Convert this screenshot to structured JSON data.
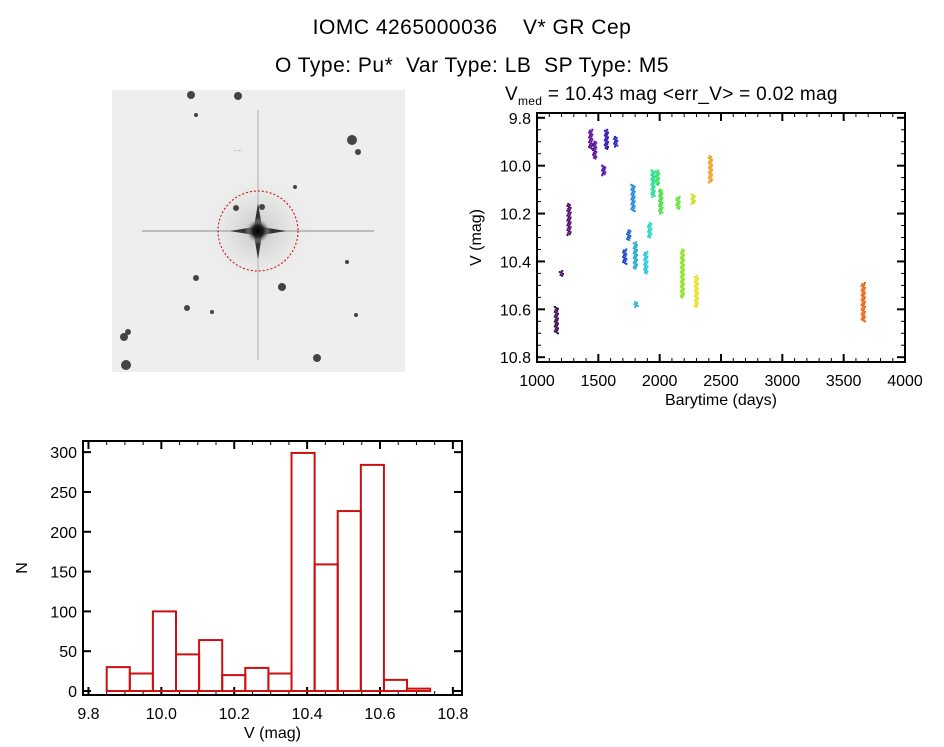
{
  "header": {
    "title_line1": "IOMC 4265000036    V* GR Cep",
    "title_line2": "O Type: Pu*  Var Type: LB  SP Type: M5"
  },
  "chart_data": [
    {
      "type": "scatter",
      "title_main": "V",
      "title_sub": "med",
      "title_rest": " = 10.43 mag <err_V> = 0.02 mag",
      "xlabel": "Barytime (days)",
      "ylabel": "V (mag)",
      "xlim": [
        1000,
        4000
      ],
      "ylim": [
        10.82,
        9.78
      ],
      "y_inverted": true,
      "xticks": [
        1000,
        1500,
        2000,
        2500,
        3000,
        3500,
        4000
      ],
      "xtick_labels": [
        "1000",
        "1500",
        "2000",
        "2500",
        "3000",
        "3500",
        "4000"
      ],
      "yticks": [
        9.8,
        10.0,
        10.2,
        10.4,
        10.6,
        10.8
      ],
      "ytick_labels": [
        "9.8",
        "10.0",
        "10.2",
        "10.4",
        "10.6",
        "10.8"
      ],
      "grid": false,
      "clusters": [
        {
          "t": 1158,
          "vmin": 10.59,
          "vmax": 10.7,
          "color": "#3a0a4a"
        },
        {
          "t": 1199,
          "vmin": 10.44,
          "vmax": 10.46,
          "color": "#40105a"
        },
        {
          "t": 1261,
          "vmin": 10.16,
          "vmax": 10.29,
          "color": "#4a0a6a"
        },
        {
          "t": 1438,
          "vmin": 9.85,
          "vmax": 9.93,
          "color": "#5a1090"
        },
        {
          "t": 1470,
          "vmin": 9.9,
          "vmax": 9.97,
          "color": "#5a1098"
        },
        {
          "t": 1544,
          "vmin": 10.0,
          "vmax": 10.04,
          "color": "#5010a0"
        },
        {
          "t": 1566,
          "vmin": 9.85,
          "vmax": 9.93,
          "color": "#3010b0"
        },
        {
          "t": 1642,
          "vmin": 9.88,
          "vmax": 9.92,
          "color": "#2020c0"
        },
        {
          "t": 1715,
          "vmin": 10.35,
          "vmax": 10.41,
          "color": "#1a40d0"
        },
        {
          "t": 1748,
          "vmin": 10.27,
          "vmax": 10.31,
          "color": "#1a60d0"
        },
        {
          "t": 1783,
          "vmin": 10.08,
          "vmax": 10.19,
          "color": "#1a8ad8"
        },
        {
          "t": 1802,
          "vmin": 10.32,
          "vmax": 10.43,
          "color": "#20a8d0"
        },
        {
          "t": 1808,
          "vmin": 10.57,
          "vmax": 10.59,
          "color": "#20b8d8"
        },
        {
          "t": 1887,
          "vmin": 10.36,
          "vmax": 10.45,
          "color": "#20c8d8"
        },
        {
          "t": 1919,
          "vmin": 10.24,
          "vmax": 10.3,
          "color": "#20d8c0"
        },
        {
          "t": 1946,
          "vmin": 10.02,
          "vmax": 10.13,
          "color": "#20e090"
        },
        {
          "t": 1982,
          "vmin": 10.02,
          "vmax": 10.08,
          "color": "#30e060"
        },
        {
          "t": 2009,
          "vmin": 10.1,
          "vmax": 10.2,
          "color": "#40e040"
        },
        {
          "t": 2150,
          "vmin": 10.13,
          "vmax": 10.18,
          "color": "#60e030"
        },
        {
          "t": 2185,
          "vmin": 10.35,
          "vmax": 10.55,
          "color": "#90e020"
        },
        {
          "t": 2273,
          "vmin": 10.12,
          "vmax": 10.16,
          "color": "#c8e020"
        },
        {
          "t": 2300,
          "vmin": 10.46,
          "vmax": 10.59,
          "color": "#e8e020"
        },
        {
          "t": 2414,
          "vmin": 9.96,
          "vmax": 10.07,
          "color": "#f0a020"
        },
        {
          "t": 3660,
          "vmin": 10.49,
          "vmax": 10.65,
          "color": "#f06010"
        }
      ]
    },
    {
      "type": "bar",
      "subtype": "histogram",
      "xlabel": "V (mag)",
      "ylabel": "N",
      "xlim": [
        9.785,
        10.825
      ],
      "ylim": [
        -5,
        314
      ],
      "xticks": [
        9.8,
        10.0,
        10.2,
        10.4,
        10.6,
        10.8
      ],
      "xtick_labels": [
        "9.8",
        "10.0",
        "10.2",
        "10.4",
        "10.6",
        "10.8"
      ],
      "yticks": [
        0,
        50,
        100,
        150,
        200,
        250,
        300
      ],
      "ytick_labels": [
        "0",
        "50",
        "100",
        "150",
        "200",
        "250",
        "300"
      ],
      "bin_start": 9.85,
      "bin_width": 0.0634,
      "values": [
        30,
        22,
        100,
        46,
        64,
        20,
        29,
        22,
        299,
        159,
        226,
        284,
        14,
        3
      ],
      "color": "#cc1010",
      "grid": false
    }
  ]
}
